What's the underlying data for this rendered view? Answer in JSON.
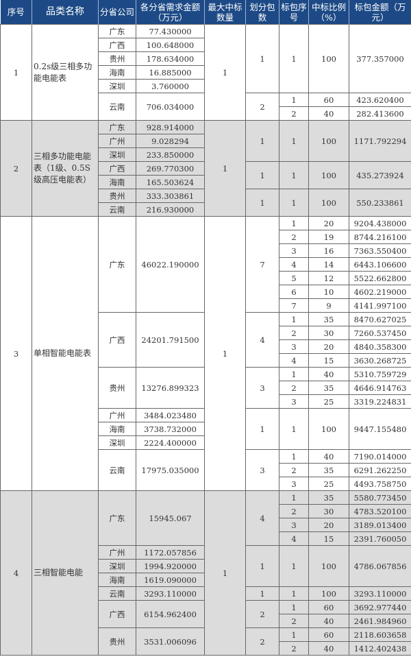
{
  "header": {
    "seq": "序号",
    "category": "品类名称",
    "province": "分省公司",
    "demand": "各分省需求金额（万元）",
    "max_win": "最大中标数量",
    "split": "划分包数",
    "pkg_seq": "标包序号",
    "ratio": "中标比例（%）",
    "pkg_amount": "标包金额（万元）"
  },
  "colors": {
    "header_bg": "#1d4a86",
    "alt_row_bg": "#dcdcdc"
  },
  "groups": [
    {
      "seq": "1",
      "name": "0.2s级三相多功能电能表",
      "max_win": "1",
      "shaded": false,
      "blocks": [
        {
          "provinces": [
            {
              "name": "广东",
              "amount": "77.430000"
            },
            {
              "name": "广西",
              "amount": "100.648000"
            },
            {
              "name": "贵州",
              "amount": "178.634000"
            },
            {
              "name": "海南",
              "amount": "16.885000"
            },
            {
              "name": "深圳",
              "amount": "3.760000"
            }
          ],
          "split": "1",
          "packages": [
            {
              "seq": "1",
              "ratio": "100",
              "amount": "377.357000"
            }
          ]
        },
        {
          "provinces": [
            {
              "name": "云南",
              "amount": "706.034000"
            }
          ],
          "split": "2",
          "packages": [
            {
              "seq": "1",
              "ratio": "60",
              "amount": "423.620400"
            },
            {
              "seq": "2",
              "ratio": "40",
              "amount": "282.413600"
            }
          ]
        }
      ]
    },
    {
      "seq": "2",
      "name": "三相多功能电能表（1级、0.5S级高压电能表）",
      "max_win": "1",
      "shaded": true,
      "blocks": [
        {
          "provinces": [
            {
              "name": "广东",
              "amount": "928.914000"
            },
            {
              "name": "广州",
              "amount": "9.028294"
            },
            {
              "name": "深圳",
              "amount": "233.850000"
            }
          ],
          "split": "1",
          "packages": [
            {
              "seq": "1",
              "ratio": "100",
              "amount": "1171.792294"
            }
          ]
        },
        {
          "provinces": [
            {
              "name": "广西",
              "amount": "269.770300"
            },
            {
              "name": "海南",
              "amount": "165.503624"
            }
          ],
          "split": "1",
          "packages": [
            {
              "seq": "1",
              "ratio": "100",
              "amount": "435.273924"
            }
          ]
        },
        {
          "provinces": [
            {
              "name": "贵州",
              "amount": "333.303861"
            },
            {
              "name": "云南",
              "amount": "216.930000"
            }
          ],
          "split": "1",
          "packages": [
            {
              "seq": "1",
              "ratio": "100",
              "amount": "550.233861"
            }
          ]
        }
      ]
    },
    {
      "seq": "3",
      "name": "单相智能电能表",
      "max_win": "1",
      "shaded": false,
      "blocks": [
        {
          "provinces": [
            {
              "name": "广东",
              "amount": "46022.190000"
            }
          ],
          "split": "7",
          "packages": [
            {
              "seq": "1",
              "ratio": "20",
              "amount": "9204.438000"
            },
            {
              "seq": "2",
              "ratio": "19",
              "amount": "8744.216100"
            },
            {
              "seq": "3",
              "ratio": "16",
              "amount": "7363.550400"
            },
            {
              "seq": "4",
              "ratio": "14",
              "amount": "6443.106600"
            },
            {
              "seq": "5",
              "ratio": "12",
              "amount": "5522.662800"
            },
            {
              "seq": "6",
              "ratio": "10",
              "amount": "4602.219000"
            },
            {
              "seq": "7",
              "ratio": "9",
              "amount": "4141.997100"
            }
          ]
        },
        {
          "provinces": [
            {
              "name": "广西",
              "amount": "24201.791500"
            }
          ],
          "split": "4",
          "packages": [
            {
              "seq": "1",
              "ratio": "35",
              "amount": "8470.627025"
            },
            {
              "seq": "2",
              "ratio": "30",
              "amount": "7260.537450"
            },
            {
              "seq": "3",
              "ratio": "20",
              "amount": "4840.358300"
            },
            {
              "seq": "4",
              "ratio": "15",
              "amount": "3630.268725"
            }
          ]
        },
        {
          "provinces": [
            {
              "name": "贵州",
              "amount": "13276.899323"
            }
          ],
          "split": "3",
          "packages": [
            {
              "seq": "1",
              "ratio": "40",
              "amount": "5310.759729"
            },
            {
              "seq": "2",
              "ratio": "35",
              "amount": "4646.914763"
            },
            {
              "seq": "3",
              "ratio": "25",
              "amount": "3319.224831"
            }
          ]
        },
        {
          "provinces": [
            {
              "name": "广州",
              "amount": "3484.023480"
            },
            {
              "name": "海南",
              "amount": "3738.732000"
            },
            {
              "name": "深圳",
              "amount": "2224.400000"
            }
          ],
          "split": "1",
          "packages": [
            {
              "seq": "1",
              "ratio": "100",
              "amount": "9447.155480"
            }
          ]
        },
        {
          "provinces": [
            {
              "name": "云南",
              "amount": "17975.035000"
            }
          ],
          "split": "3",
          "packages": [
            {
              "seq": "1",
              "ratio": "40",
              "amount": "7190.014000"
            },
            {
              "seq": "2",
              "ratio": "35",
              "amount": "6291.262250"
            },
            {
              "seq": "3",
              "ratio": "25",
              "amount": "4493.758750"
            }
          ]
        }
      ]
    },
    {
      "seq": "4",
      "name": "三相智能电能",
      "max_win": "1",
      "shaded": true,
      "blocks": [
        {
          "provinces": [
            {
              "name": "广东",
              "amount": "15945.067"
            }
          ],
          "split": "4",
          "packages": [
            {
              "seq": "1",
              "ratio": "35",
              "amount": "5580.773450"
            },
            {
              "seq": "2",
              "ratio": "30",
              "amount": "4783.520100"
            },
            {
              "seq": "3",
              "ratio": "20",
              "amount": "3189.013400"
            },
            {
              "seq": "4",
              "ratio": "15",
              "amount": "2391.760050"
            }
          ]
        },
        {
          "provinces": [
            {
              "name": "广州",
              "amount": "1172.057856"
            },
            {
              "name": "深圳",
              "amount": "1994.920000"
            },
            {
              "name": "海南",
              "amount": "1619.090000"
            }
          ],
          "split": "1",
          "packages": [
            {
              "seq": "1",
              "ratio": "100",
              "amount": "4786.067856"
            }
          ]
        },
        {
          "provinces": [
            {
              "name": "云南",
              "amount": "3293.110000"
            }
          ],
          "split": "1",
          "packages": [
            {
              "seq": "1",
              "ratio": "100",
              "amount": "3293.110000"
            }
          ]
        },
        {
          "provinces": [
            {
              "name": "广西",
              "amount": "6154.962400"
            }
          ],
          "split": "2",
          "packages": [
            {
              "seq": "1",
              "ratio": "60",
              "amount": "3692.977440"
            },
            {
              "seq": "2",
              "ratio": "40",
              "amount": "2461.984960"
            }
          ]
        },
        {
          "provinces": [
            {
              "name": "贵州",
              "amount": "3531.006096"
            }
          ],
          "split": "2",
          "packages": [
            {
              "seq": "1",
              "ratio": "60",
              "amount": "2118.603658"
            },
            {
              "seq": "2",
              "ratio": "40",
              "amount": "1412.402438"
            }
          ]
        }
      ]
    }
  ]
}
